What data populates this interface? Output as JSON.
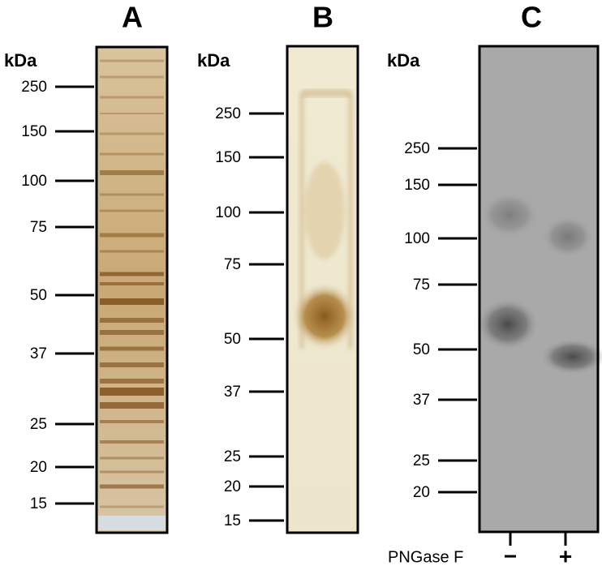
{
  "panels": [
    {
      "label": "A",
      "unit": "kDa",
      "markers": [
        250,
        150,
        100,
        75,
        50,
        37,
        25,
        20,
        15
      ]
    },
    {
      "label": "B",
      "unit": "kDa",
      "markers": [
        250,
        150,
        100,
        75,
        50,
        37,
        25,
        20,
        15
      ]
    },
    {
      "label": "C",
      "unit": "kDa",
      "markers": [
        250,
        150,
        100,
        75,
        50,
        37,
        25,
        20
      ]
    }
  ],
  "treatment": {
    "label": "PNGase F",
    "lanes": [
      "−",
      "+"
    ]
  }
}
